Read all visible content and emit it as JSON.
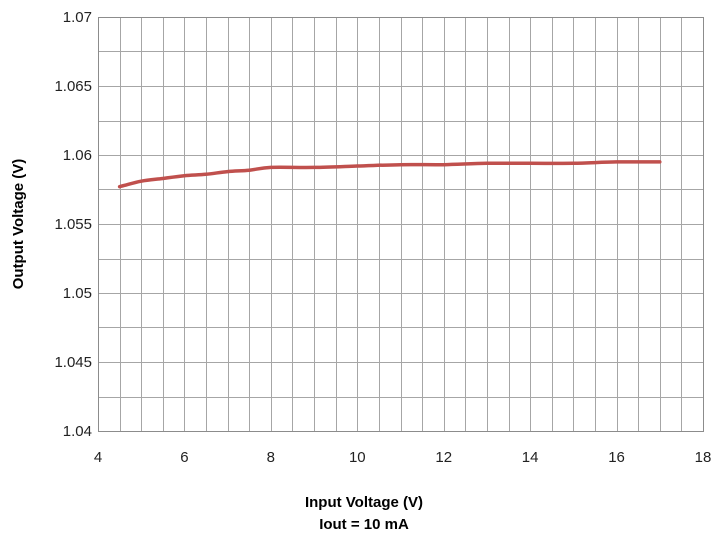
{
  "chart_data": {
    "type": "line",
    "xlabel": "Input Voltage (V)",
    "xlabel_line2": "Iout = 10 mA",
    "ylabel": "Output Voltage (V)",
    "xlim": [
      4,
      18
    ],
    "ylim": [
      1.04,
      1.07
    ],
    "x_ticks": [
      4,
      6,
      8,
      10,
      12,
      14,
      16,
      18
    ],
    "x_tick_labels": [
      "4",
      "6",
      "8",
      "10",
      "12",
      "14",
      "16",
      "18"
    ],
    "y_ticks": [
      1.04,
      1.045,
      1.05,
      1.055,
      1.06,
      1.065,
      1.07
    ],
    "y_tick_labels": [
      "1.04",
      "1.045",
      "1.05",
      "1.055",
      "1.06",
      "1.065",
      "1.07"
    ],
    "x_minor_step": 0.5,
    "y_minor_step": 0.0025,
    "grid": true,
    "legend": "none",
    "series": [
      {
        "color": "#c0504d",
        "x": [
          4.5,
          5,
          5.5,
          6,
          6.5,
          7,
          7.5,
          8,
          9,
          10,
          11,
          12,
          13,
          14,
          15,
          16,
          17
        ],
        "y": [
          1.0577,
          1.0581,
          1.0583,
          1.0585,
          1.0586,
          1.0588,
          1.0589,
          1.0591,
          1.0591,
          1.0592,
          1.0593,
          1.0593,
          1.0594,
          1.0594,
          1.0594,
          1.0595,
          1.0595
        ]
      }
    ]
  }
}
